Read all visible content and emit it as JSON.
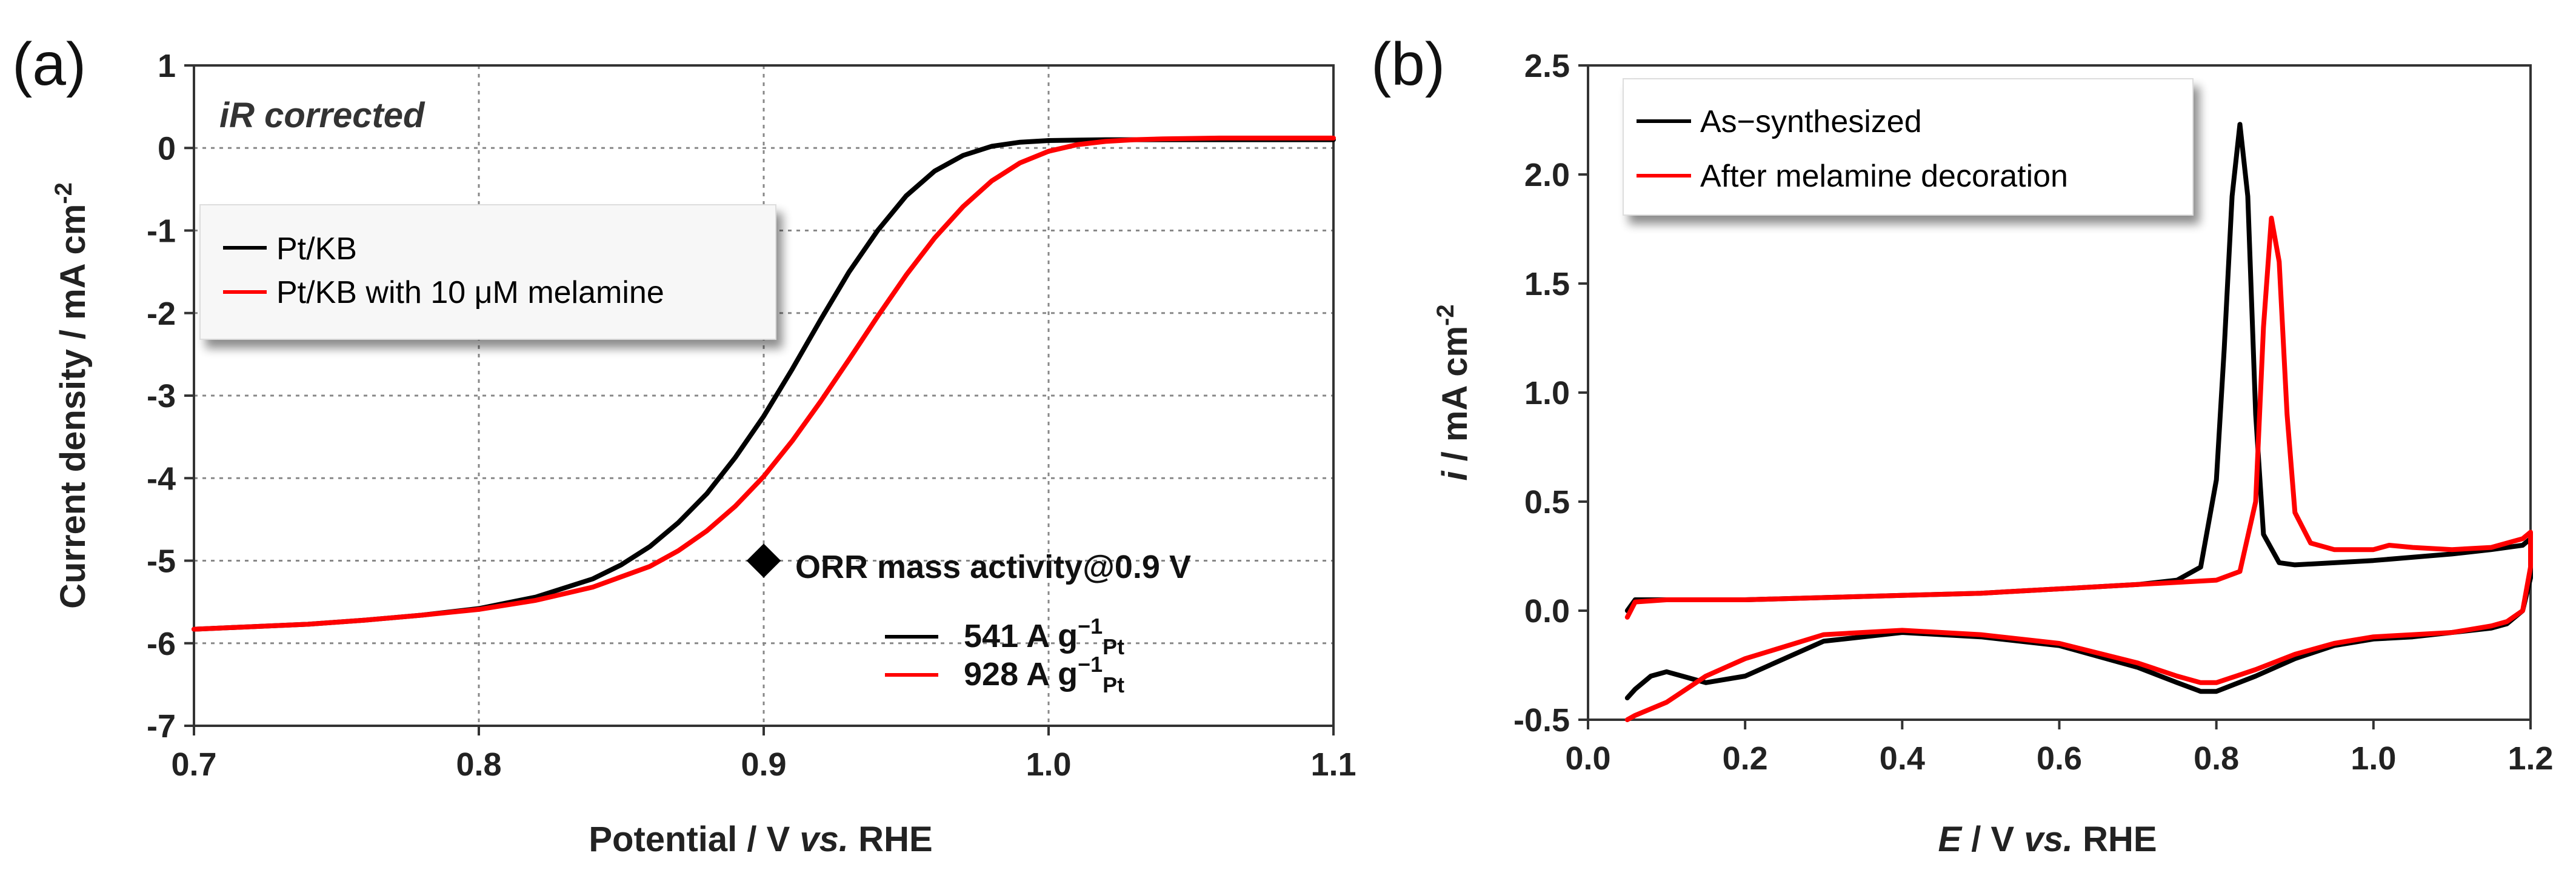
{
  "chart_data": [
    {
      "type": "line",
      "panel_label": "(a)",
      "annotation": "iR corrected",
      "xlabel": {
        "text": "Potential / V ",
        "italic": "vs.",
        "tail": " RHE"
      },
      "ylabel": "Current density / mA cm",
      "ylabel_sup": "-2",
      "xlim": [
        0.7,
        1.1
      ],
      "ylim": [
        -7,
        1
      ],
      "xticks": [
        0.7,
        0.8,
        0.9,
        1.0,
        1.1
      ],
      "xtick_labels": [
        "0.7",
        "0.8",
        "0.9",
        "1.0",
        "1.1"
      ],
      "yticks": [
        1,
        0,
        -1,
        -2,
        -3,
        -4,
        -5,
        -6,
        -7
      ],
      "ytick_labels": [
        "1",
        "0",
        "-1",
        "-2",
        "-3",
        "-4",
        "-5",
        "-6",
        "-7"
      ],
      "grid": "dotted",
      "legend_position": "upper-left",
      "series": [
        {
          "name": "Pt/KB",
          "color": "#000000",
          "x": [
            0.7,
            0.72,
            0.74,
            0.76,
            0.78,
            0.8,
            0.82,
            0.84,
            0.85,
            0.86,
            0.87,
            0.88,
            0.89,
            0.9,
            0.91,
            0.92,
            0.93,
            0.94,
            0.95,
            0.96,
            0.97,
            0.98,
            0.99,
            1.0,
            1.02,
            1.04,
            1.06,
            1.08,
            1.1
          ],
          "y": [
            -5.83,
            -5.8,
            -5.77,
            -5.72,
            -5.66,
            -5.58,
            -5.44,
            -5.22,
            -5.05,
            -4.83,
            -4.54,
            -4.19,
            -3.75,
            -3.25,
            -2.68,
            -2.08,
            -1.5,
            -1.0,
            -0.58,
            -0.28,
            -0.09,
            0.02,
            0.07,
            0.09,
            0.1,
            0.1,
            0.1,
            0.1,
            0.1
          ]
        },
        {
          "name": "Pt/KB with 10 μM  melamine",
          "color": "#ff0000",
          "x": [
            0.7,
            0.72,
            0.74,
            0.76,
            0.78,
            0.8,
            0.82,
            0.84,
            0.86,
            0.87,
            0.88,
            0.89,
            0.9,
            0.91,
            0.92,
            0.93,
            0.94,
            0.95,
            0.96,
            0.97,
            0.98,
            0.99,
            1.0,
            1.01,
            1.02,
            1.03,
            1.04,
            1.06,
            1.08,
            1.1
          ],
          "y": [
            -5.83,
            -5.8,
            -5.77,
            -5.72,
            -5.66,
            -5.59,
            -5.48,
            -5.32,
            -5.07,
            -4.88,
            -4.64,
            -4.34,
            -3.98,
            -3.55,
            -3.07,
            -2.56,
            -2.04,
            -1.54,
            -1.09,
            -0.71,
            -0.4,
            -0.18,
            -0.04,
            0.04,
            0.08,
            0.1,
            0.11,
            0.12,
            0.12,
            0.12
          ]
        }
      ],
      "marker": {
        "label": "ORR mass activity@0.9 V",
        "x": 0.9,
        "y": -5.0
      },
      "mass_activity": [
        {
          "text": "541 A g",
          "sup": "−1",
          "sub": "Pt",
          "color": "#000000"
        },
        {
          "text": "928 A g",
          "sup": "−1",
          "sub": "Pt",
          "color": "#ff0000"
        }
      ]
    },
    {
      "type": "line",
      "panel_label": "(b)",
      "xlabel": {
        "italic": "E",
        "text": " / V ",
        "italic2": "vs.",
        "tail": " RHE"
      },
      "ylabel": {
        "italic": "i",
        "text": " / mA cm",
        "sup": "-2"
      },
      "xlim": [
        0.0,
        1.2
      ],
      "ylim": [
        -0.5,
        2.5
      ],
      "xticks": [
        0.0,
        0.2,
        0.4,
        0.6,
        0.8,
        1.0,
        1.2
      ],
      "xtick_labels": [
        "0.0",
        "0.2",
        "0.4",
        "0.6",
        "0.8",
        "1.0",
        "1.2"
      ],
      "yticks": [
        2.5,
        2.0,
        1.5,
        1.0,
        0.5,
        0.0,
        -0.5
      ],
      "ytick_labels": [
        "2.5",
        "2.0",
        "1.5",
        "1.0",
        "0.5",
        "0.0",
        "-0.5"
      ],
      "grid": "none",
      "legend_position": "top-left",
      "series": [
        {
          "name": "As−synthesized",
          "color": "#000000",
          "x": [
            0.05,
            0.06,
            0.1,
            0.2,
            0.3,
            0.4,
            0.5,
            0.6,
            0.7,
            0.75,
            0.78,
            0.8,
            0.81,
            0.82,
            0.83,
            0.84,
            0.85,
            0.86,
            0.88,
            0.9,
            1.0,
            1.1,
            1.15,
            1.19,
            1.2,
            1.2,
            1.19,
            1.17,
            1.15,
            1.1,
            1.05,
            1.0,
            0.95,
            0.9,
            0.85,
            0.8,
            0.78,
            0.75,
            0.7,
            0.6,
            0.5,
            0.4,
            0.3,
            0.2,
            0.15,
            0.12,
            0.1,
            0.08,
            0.06,
            0.05
          ],
          "y": [
            0.0,
            0.05,
            0.05,
            0.05,
            0.06,
            0.07,
            0.08,
            0.1,
            0.12,
            0.14,
            0.2,
            0.6,
            1.2,
            1.9,
            2.23,
            1.9,
            0.9,
            0.35,
            0.22,
            0.21,
            0.23,
            0.26,
            0.28,
            0.3,
            0.33,
            0.15,
            0.0,
            -0.06,
            -0.08,
            -0.1,
            -0.12,
            -0.13,
            -0.16,
            -0.22,
            -0.3,
            -0.37,
            -0.37,
            -0.33,
            -0.26,
            -0.16,
            -0.12,
            -0.1,
            -0.14,
            -0.3,
            -0.33,
            -0.3,
            -0.28,
            -0.3,
            -0.36,
            -0.4
          ]
        },
        {
          "name": "After melamine decoration",
          "color": "#ff0000",
          "x": [
            0.05,
            0.06,
            0.1,
            0.2,
            0.3,
            0.4,
            0.5,
            0.6,
            0.7,
            0.8,
            0.83,
            0.85,
            0.86,
            0.87,
            0.88,
            0.89,
            0.9,
            0.92,
            0.95,
            1.0,
            1.02,
            1.05,
            1.1,
            1.15,
            1.19,
            1.2,
            1.2,
            1.19,
            1.17,
            1.15,
            1.1,
            1.05,
            1.0,
            0.95,
            0.9,
            0.85,
            0.8,
            0.78,
            0.75,
            0.7,
            0.6,
            0.5,
            0.4,
            0.3,
            0.2,
            0.15,
            0.1,
            0.06,
            0.05
          ],
          "y": [
            -0.03,
            0.04,
            0.05,
            0.05,
            0.06,
            0.07,
            0.08,
            0.1,
            0.12,
            0.14,
            0.18,
            0.5,
            1.3,
            1.8,
            1.6,
            0.9,
            0.45,
            0.31,
            0.28,
            0.28,
            0.3,
            0.29,
            0.28,
            0.29,
            0.33,
            0.36,
            0.2,
            0.0,
            -0.05,
            -0.07,
            -0.1,
            -0.11,
            -0.12,
            -0.15,
            -0.2,
            -0.27,
            -0.33,
            -0.33,
            -0.3,
            -0.24,
            -0.15,
            -0.11,
            -0.09,
            -0.11,
            -0.22,
            -0.3,
            -0.42,
            -0.48,
            -0.5
          ]
        }
      ]
    }
  ]
}
